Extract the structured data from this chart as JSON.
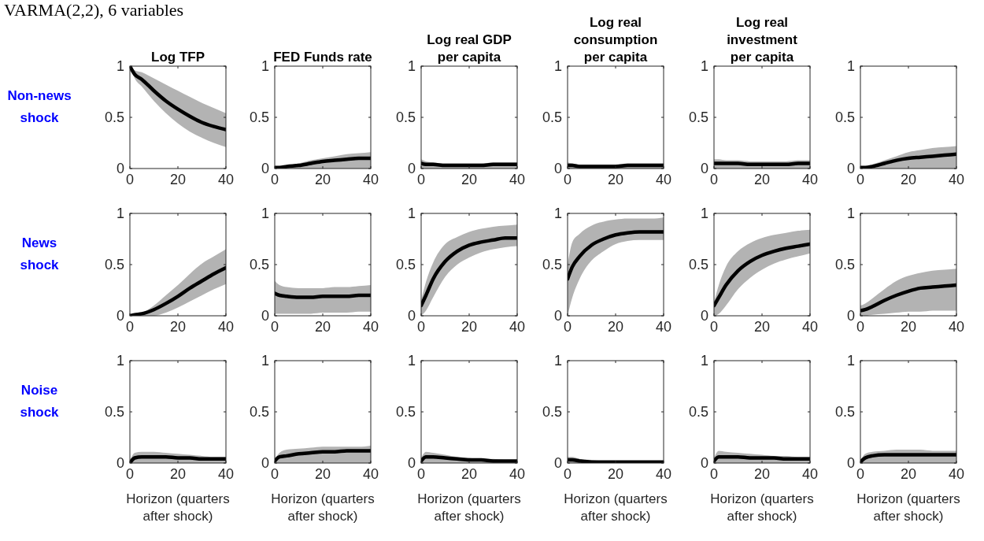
{
  "chart_data": [
    {
      "type": "line",
      "title": "Log TFP",
      "ylabel": "Non-news\nshock",
      "annotations": [
        "VARMA(2,2), 6 variables"
      ],
      "x": [
        0,
        2,
        5,
        10,
        15,
        20,
        25,
        30,
        35,
        40
      ],
      "xlim": [
        0,
        40
      ],
      "xticks": [
        0,
        20,
        40
      ],
      "ylim": [
        0,
        1
      ],
      "yticks": [
        0,
        0.5,
        1
      ],
      "series": [
        {
          "color": "#000000",
          "values": [
            1,
            0.92,
            0.87,
            0.76,
            0.66,
            0.58,
            0.51,
            0.45,
            0.41,
            0.38
          ],
          "lower": [
            1,
            0.88,
            0.8,
            0.66,
            0.54,
            0.44,
            0.36,
            0.3,
            0.25,
            0.21
          ],
          "upper": [
            1,
            0.96,
            0.94,
            0.88,
            0.82,
            0.76,
            0.7,
            0.64,
            0.59,
            0.54
          ]
        }
      ]
    },
    {
      "type": "line",
      "title": "FED Funds rate",
      "x": [
        0,
        2,
        5,
        10,
        15,
        20,
        25,
        30,
        35,
        40
      ],
      "xlim": [
        0,
        40
      ],
      "xticks": [
        0,
        20,
        40
      ],
      "ylim": [
        0,
        1
      ],
      "yticks": [
        0,
        0.5,
        1
      ],
      "series": [
        {
          "color": "#000000",
          "values": [
            0.01,
            0.01,
            0.02,
            0.03,
            0.05,
            0.07,
            0.08,
            0.09,
            0.1,
            0.1
          ],
          "lower": [
            0,
            0,
            0,
            0,
            0,
            0,
            0,
            0,
            0,
            0
          ],
          "upper": [
            0.02,
            0.02,
            0.03,
            0.05,
            0.08,
            0.1,
            0.12,
            0.14,
            0.15,
            0.16
          ]
        }
      ]
    },
    {
      "type": "line",
      "title": "Log real GDP\nper capita",
      "x": [
        0,
        2,
        5,
        10,
        15,
        20,
        25,
        30,
        35,
        40
      ],
      "xlim": [
        0,
        40
      ],
      "xticks": [
        0,
        20,
        40
      ],
      "ylim": [
        0,
        1
      ],
      "yticks": [
        0,
        0.5,
        1
      ],
      "series": [
        {
          "color": "#000000",
          "values": [
            0.05,
            0.04,
            0.04,
            0.03,
            0.03,
            0.03,
            0.03,
            0.04,
            0.04,
            0.04
          ],
          "lower": [
            0,
            0,
            0,
            0,
            0,
            0,
            0,
            0,
            0,
            0
          ],
          "upper": [
            0.09,
            0.07,
            0.06,
            0.05,
            0.05,
            0.05,
            0.05,
            0.06,
            0.06,
            0.06
          ]
        }
      ]
    },
    {
      "type": "line",
      "title": "Log real\nconsumption\nper capita",
      "x": [
        0,
        2,
        5,
        10,
        15,
        20,
        25,
        30,
        35,
        40
      ],
      "xlim": [
        0,
        40
      ],
      "xticks": [
        0,
        20,
        40
      ],
      "ylim": [
        0,
        1
      ],
      "yticks": [
        0,
        0.5,
        1
      ],
      "series": [
        {
          "color": "#000000",
          "values": [
            0.03,
            0.03,
            0.02,
            0.02,
            0.02,
            0.02,
            0.03,
            0.03,
            0.03,
            0.03
          ],
          "lower": [
            0,
            0,
            0,
            0,
            0,
            0,
            0,
            0,
            0,
            0
          ],
          "upper": [
            0.06,
            0.05,
            0.04,
            0.04,
            0.04,
            0.04,
            0.05,
            0.05,
            0.05,
            0.05
          ]
        }
      ]
    },
    {
      "type": "line",
      "title": "Log real\ninvestment\nper capita",
      "x": [
        0,
        2,
        5,
        10,
        15,
        20,
        25,
        30,
        35,
        40
      ],
      "xlim": [
        0,
        40
      ],
      "xticks": [
        0,
        20,
        40
      ],
      "ylim": [
        0,
        1
      ],
      "yticks": [
        0,
        0.5,
        1
      ],
      "series": [
        {
          "color": "#000000",
          "values": [
            0.05,
            0.05,
            0.05,
            0.05,
            0.04,
            0.04,
            0.04,
            0.04,
            0.05,
            0.05
          ],
          "lower": [
            0,
            0,
            0,
            0,
            0,
            0,
            0,
            0,
            0,
            0
          ],
          "upper": [
            0.09,
            0.09,
            0.08,
            0.08,
            0.07,
            0.07,
            0.07,
            0.07,
            0.08,
            0.08
          ]
        }
      ]
    },
    {
      "type": "line",
      "x": [
        0,
        2,
        5,
        10,
        15,
        20,
        25,
        30,
        35,
        40
      ],
      "xlim": [
        0,
        40
      ],
      "xticks": [
        0,
        20,
        40
      ],
      "ylim": [
        0,
        1
      ],
      "yticks": [
        0,
        0.5,
        1
      ],
      "series": [
        {
          "color": "#000000",
          "values": [
            0.01,
            0.01,
            0.02,
            0.05,
            0.08,
            0.1,
            0.11,
            0.12,
            0.13,
            0.14
          ],
          "lower": [
            0,
            0,
            0,
            0,
            0,
            0,
            0,
            0,
            0,
            0
          ],
          "upper": [
            0.02,
            0.02,
            0.04,
            0.08,
            0.12,
            0.16,
            0.18,
            0.2,
            0.21,
            0.22
          ]
        }
      ]
    },
    {
      "type": "line",
      "ylabel": "News\nshock",
      "x": [
        0,
        2,
        5,
        10,
        15,
        20,
        25,
        30,
        35,
        40
      ],
      "xlim": [
        0,
        40
      ],
      "xticks": [
        0,
        20,
        40
      ],
      "ylim": [
        0,
        1
      ],
      "yticks": [
        0,
        0.5,
        1
      ],
      "series": [
        {
          "color": "#000000",
          "values": [
            0,
            0.01,
            0.02,
            0.06,
            0.12,
            0.19,
            0.27,
            0.34,
            0.41,
            0.47
          ],
          "lower": [
            0,
            0,
            0,
            0,
            0.03,
            0.08,
            0.14,
            0.2,
            0.26,
            0.31
          ],
          "upper": [
            0,
            0.01,
            0.03,
            0.1,
            0.2,
            0.3,
            0.41,
            0.51,
            0.58,
            0.65
          ]
        }
      ]
    },
    {
      "type": "line",
      "x": [
        0,
        2,
        5,
        10,
        15,
        20,
        25,
        30,
        35,
        40
      ],
      "xlim": [
        0,
        40
      ],
      "xticks": [
        0,
        20,
        40
      ],
      "ylim": [
        0,
        1
      ],
      "yticks": [
        0,
        0.5,
        1
      ],
      "series": [
        {
          "color": "#000000",
          "values": [
            0.22,
            0.2,
            0.19,
            0.18,
            0.18,
            0.19,
            0.19,
            0.19,
            0.2,
            0.2
          ],
          "lower": [
            0.02,
            0.02,
            0.02,
            0.02,
            0.02,
            0.03,
            0.03,
            0.03,
            0.04,
            0.04
          ],
          "upper": [
            0.34,
            0.3,
            0.28,
            0.27,
            0.27,
            0.27,
            0.28,
            0.28,
            0.29,
            0.3
          ]
        }
      ]
    },
    {
      "type": "line",
      "x": [
        0,
        2,
        5,
        10,
        15,
        20,
        25,
        30,
        35,
        40
      ],
      "xlim": [
        0,
        40
      ],
      "xticks": [
        0,
        20,
        40
      ],
      "ylim": [
        0,
        1
      ],
      "yticks": [
        0,
        0.5,
        1
      ],
      "series": [
        {
          "color": "#000000",
          "values": [
            0.1,
            0.2,
            0.36,
            0.53,
            0.63,
            0.69,
            0.72,
            0.74,
            0.76,
            0.76
          ],
          "lower": [
            0,
            0.05,
            0.18,
            0.38,
            0.5,
            0.57,
            0.62,
            0.65,
            0.67,
            0.68
          ],
          "upper": [
            0.15,
            0.33,
            0.52,
            0.7,
            0.77,
            0.82,
            0.85,
            0.87,
            0.88,
            0.89
          ]
        }
      ]
    },
    {
      "type": "line",
      "x": [
        0,
        2,
        5,
        10,
        15,
        20,
        25,
        30,
        35,
        40
      ],
      "xlim": [
        0,
        40
      ],
      "xticks": [
        0,
        20,
        40
      ],
      "ylim": [
        0,
        1
      ],
      "yticks": [
        0,
        0.5,
        1
      ],
      "series": [
        {
          "color": "#000000",
          "values": [
            0.36,
            0.48,
            0.58,
            0.69,
            0.75,
            0.79,
            0.81,
            0.82,
            0.82,
            0.82
          ],
          "lower": [
            0,
            0.18,
            0.36,
            0.54,
            0.63,
            0.7,
            0.73,
            0.74,
            0.74,
            0.74
          ],
          "upper": [
            0.5,
            0.72,
            0.8,
            0.88,
            0.92,
            0.94,
            0.95,
            0.95,
            0.95,
            0.96
          ]
        }
      ]
    },
    {
      "type": "line",
      "x": [
        0,
        2,
        5,
        10,
        15,
        20,
        25,
        30,
        35,
        40
      ],
      "xlim": [
        0,
        40
      ],
      "xticks": [
        0,
        20,
        40
      ],
      "ylim": [
        0,
        1
      ],
      "yticks": [
        0,
        0.5,
        1
      ],
      "series": [
        {
          "color": "#000000",
          "values": [
            0.1,
            0.18,
            0.3,
            0.44,
            0.53,
            0.59,
            0.63,
            0.66,
            0.68,
            0.7
          ],
          "lower": [
            0,
            0.02,
            0.1,
            0.26,
            0.37,
            0.45,
            0.51,
            0.55,
            0.58,
            0.61
          ],
          "upper": [
            0.13,
            0.3,
            0.48,
            0.63,
            0.71,
            0.76,
            0.79,
            0.81,
            0.83,
            0.84
          ]
        }
      ]
    },
    {
      "type": "line",
      "x": [
        0,
        2,
        5,
        10,
        15,
        20,
        25,
        30,
        35,
        40
      ],
      "xlim": [
        0,
        40
      ],
      "xticks": [
        0,
        20,
        40
      ],
      "ylim": [
        0,
        1
      ],
      "yticks": [
        0,
        0.5,
        1
      ],
      "series": [
        {
          "color": "#000000",
          "values": [
            0.05,
            0.06,
            0.09,
            0.15,
            0.2,
            0.24,
            0.27,
            0.28,
            0.29,
            0.3
          ],
          "lower": [
            0,
            0,
            0.01,
            0.02,
            0.03,
            0.04,
            0.04,
            0.05,
            0.05,
            0.05
          ],
          "upper": [
            0.1,
            0.12,
            0.17,
            0.26,
            0.34,
            0.39,
            0.42,
            0.44,
            0.45,
            0.46
          ]
        }
      ]
    },
    {
      "type": "line",
      "ylabel": "Noise\nshock",
      "xlabel": "Horizon (quarters\nafter shock)",
      "x": [
        0,
        2,
        5,
        10,
        15,
        20,
        25,
        30,
        35,
        40
      ],
      "xlim": [
        0,
        40
      ],
      "xticks": [
        0,
        20,
        40
      ],
      "ylim": [
        0,
        1
      ],
      "yticks": [
        0,
        0.5,
        1
      ],
      "series": [
        {
          "color": "#000000",
          "values": [
            0,
            0.05,
            0.06,
            0.06,
            0.06,
            0.05,
            0.05,
            0.04,
            0.04,
            0.04
          ],
          "lower": [
            0,
            0,
            0,
            0,
            0,
            0,
            0,
            0,
            0,
            0
          ],
          "upper": [
            0.02,
            0.1,
            0.11,
            0.11,
            0.1,
            0.09,
            0.08,
            0.07,
            0.06,
            0.06
          ]
        }
      ]
    },
    {
      "type": "line",
      "xlabel": "Horizon (quarters\nafter shock)",
      "x": [
        0,
        2,
        5,
        10,
        15,
        20,
        25,
        30,
        35,
        40
      ],
      "xlim": [
        0,
        40
      ],
      "xticks": [
        0,
        20,
        40
      ],
      "ylim": [
        0,
        1
      ],
      "yticks": [
        0,
        0.5,
        1
      ],
      "series": [
        {
          "color": "#000000",
          "values": [
            0.02,
            0.06,
            0.07,
            0.09,
            0.1,
            0.11,
            0.11,
            0.12,
            0.12,
            0.12
          ],
          "lower": [
            0,
            0,
            0,
            0,
            0,
            0,
            0,
            0,
            0,
            0
          ],
          "upper": [
            0.04,
            0.1,
            0.13,
            0.14,
            0.15,
            0.16,
            0.16,
            0.16,
            0.16,
            0.17
          ]
        }
      ]
    },
    {
      "type": "line",
      "xlabel": "Horizon (quarters\nafter shock)",
      "x": [
        0,
        2,
        5,
        10,
        15,
        20,
        25,
        30,
        35,
        40
      ],
      "xlim": [
        0,
        40
      ],
      "xticks": [
        0,
        20,
        40
      ],
      "ylim": [
        0,
        1
      ],
      "yticks": [
        0,
        0.5,
        1
      ],
      "series": [
        {
          "color": "#000000",
          "values": [
            0.02,
            0.06,
            0.06,
            0.05,
            0.04,
            0.03,
            0.03,
            0.02,
            0.02,
            0.02
          ],
          "lower": [
            0,
            0,
            0,
            0,
            0,
            0,
            0,
            0,
            0,
            0
          ],
          "upper": [
            0.05,
            0.11,
            0.1,
            0.08,
            0.06,
            0.05,
            0.04,
            0.04,
            0.03,
            0.03
          ]
        }
      ]
    },
    {
      "type": "line",
      "xlabel": "Horizon (quarters\nafter shock)",
      "x": [
        0,
        2,
        5,
        10,
        15,
        20,
        25,
        30,
        35,
        40
      ],
      "xlim": [
        0,
        40
      ],
      "xticks": [
        0,
        20,
        40
      ],
      "ylim": [
        0,
        1
      ],
      "yticks": [
        0,
        0.5,
        1
      ],
      "series": [
        {
          "color": "#000000",
          "values": [
            0.03,
            0.03,
            0.02,
            0.01,
            0.01,
            0.01,
            0.01,
            0.01,
            0.01,
            0.01
          ],
          "lower": [
            0,
            0,
            0,
            0,
            0,
            0,
            0,
            0,
            0,
            0
          ],
          "upper": [
            0.06,
            0.06,
            0.04,
            0.03,
            0.02,
            0.02,
            0.02,
            0.02,
            0.02,
            0.02
          ]
        }
      ]
    },
    {
      "type": "line",
      "xlabel": "Horizon (quarters\nafter shock)",
      "x": [
        0,
        2,
        5,
        10,
        15,
        20,
        25,
        30,
        35,
        40
      ],
      "xlim": [
        0,
        40
      ],
      "xticks": [
        0,
        20,
        40
      ],
      "ylim": [
        0,
        1
      ],
      "yticks": [
        0,
        0.5,
        1
      ],
      "series": [
        {
          "color": "#000000",
          "values": [
            0.02,
            0.06,
            0.06,
            0.06,
            0.05,
            0.05,
            0.05,
            0.04,
            0.04,
            0.04
          ],
          "lower": [
            0,
            0,
            0,
            0,
            0,
            0,
            0,
            0,
            0,
            0
          ],
          "upper": [
            0.05,
            0.12,
            0.11,
            0.1,
            0.09,
            0.08,
            0.07,
            0.07,
            0.06,
            0.06
          ]
        }
      ]
    },
    {
      "type": "line",
      "xlabel": "Horizon (quarters\nafter shock)",
      "x": [
        0,
        2,
        5,
        10,
        15,
        20,
        25,
        30,
        35,
        40
      ],
      "xlim": [
        0,
        40
      ],
      "xticks": [
        0,
        20,
        40
      ],
      "ylim": [
        0,
        1
      ],
      "yticks": [
        0,
        0.5,
        1
      ],
      "series": [
        {
          "color": "#000000",
          "values": [
            0.01,
            0.05,
            0.07,
            0.08,
            0.08,
            0.08,
            0.08,
            0.08,
            0.08,
            0.08
          ],
          "lower": [
            0,
            0,
            0,
            0,
            0,
            0,
            0,
            0,
            0,
            0
          ],
          "upper": [
            0.02,
            0.09,
            0.11,
            0.12,
            0.13,
            0.13,
            0.13,
            0.12,
            0.12,
            0.12
          ]
        }
      ]
    }
  ]
}
